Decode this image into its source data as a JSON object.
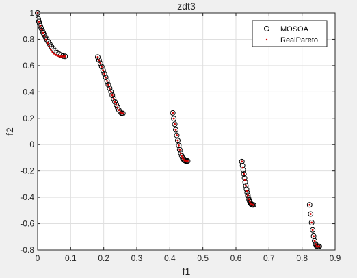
{
  "chart_data": {
    "type": "scatter",
    "title": "zdt3",
    "xlabel": "f1",
    "ylabel": "f2",
    "xlim": [
      0,
      0.9
    ],
    "ylim": [
      -0.8,
      1
    ],
    "xticks": [
      0,
      0.1,
      0.2,
      0.3,
      0.4,
      0.5,
      0.6,
      0.7,
      0.8,
      0.9
    ],
    "xtick_labels": [
      "0",
      "0.1",
      "0.2",
      "0.3",
      "0.4",
      "0.5",
      "0.6",
      "0.7",
      "0.8",
      "0.9"
    ],
    "yticks": [
      -0.8,
      -0.6,
      -0.4,
      -0.2,
      0,
      0.2,
      0.4,
      0.6,
      0.8,
      1
    ],
    "ytick_labels": [
      "-0.8",
      "-0.6",
      "-0.4",
      "-0.2",
      "0",
      "0.2",
      "0.4",
      "0.6",
      "0.8",
      "1"
    ],
    "grid": true,
    "legend_position": "top-right",
    "segments": [
      [
        0,
        0.083
      ],
      [
        0.182,
        0.258
      ],
      [
        0.409,
        0.454
      ],
      [
        0.618,
        0.653
      ],
      [
        0.823,
        0.852
      ]
    ],
    "series": [
      {
        "name": "MOSOA",
        "marker": "circle-open",
        "color": "#000000",
        "x": [
          0,
          0.002,
          0.004,
          0.006,
          0.008,
          0.011,
          0.014,
          0.017,
          0.02,
          0.024,
          0.028,
          0.032,
          0.037,
          0.042,
          0.047,
          0.053,
          0.059,
          0.065,
          0.071,
          0.077,
          0.083,
          0.182,
          0.186,
          0.19,
          0.194,
          0.198,
          0.202,
          0.206,
          0.21,
          0.214,
          0.218,
          0.222,
          0.226,
          0.23,
          0.234,
          0.238,
          0.242,
          0.246,
          0.25,
          0.254,
          0.258,
          0.409,
          0.412,
          0.415,
          0.418,
          0.421,
          0.424,
          0.427,
          0.43,
          0.433,
          0.436,
          0.439,
          0.442,
          0.445,
          0.448,
          0.451,
          0.454,
          0.618,
          0.62,
          0.622,
          0.624,
          0.626,
          0.628,
          0.63,
          0.632,
          0.634,
          0.636,
          0.638,
          0.64,
          0.642,
          0.644,
          0.646,
          0.648,
          0.65,
          0.653,
          0.823,
          0.826,
          0.829,
          0.832,
          0.835,
          0.838,
          0.841,
          0.844,
          0.847,
          0.85,
          0.852
        ],
        "y": [
          1,
          0.955,
          0.935,
          0.918,
          0.903,
          0.884,
          0.866,
          0.849,
          0.834,
          0.815,
          0.797,
          0.781,
          0.762,
          0.745,
          0.729,
          0.713,
          0.699,
          0.688,
          0.679,
          0.673,
          0.671,
          0.665,
          0.642,
          0.617,
          0.592,
          0.565,
          0.538,
          0.511,
          0.483,
          0.455,
          0.428,
          0.401,
          0.375,
          0.349,
          0.325,
          0.303,
          0.282,
          0.263,
          0.248,
          0.239,
          0.237,
          0.241,
          0.198,
          0.156,
          0.113,
          0.071,
          0.032,
          -0.006,
          -0.038,
          -0.065,
          -0.086,
          -0.102,
          -0.113,
          -0.12,
          -0.124,
          -0.125,
          -0.124,
          -0.128,
          -0.16,
          -0.192,
          -0.223,
          -0.254,
          -0.284,
          -0.312,
          -0.339,
          -0.364,
          -0.386,
          -0.405,
          -0.421,
          -0.434,
          -0.445,
          -0.452,
          -0.456,
          -0.458,
          -0.458,
          -0.458,
          -0.527,
          -0.592,
          -0.648,
          -0.695,
          -0.731,
          -0.756,
          -0.77,
          -0.774,
          -0.773,
          -0.773
        ]
      },
      {
        "name": "RealPareto",
        "marker": "dot",
        "color": "#d10000",
        "x": [
          0,
          0.004,
          0.008,
          0.012,
          0.016,
          0.02,
          0.025,
          0.03,
          0.035,
          0.04,
          0.045,
          0.05,
          0.055,
          0.06,
          0.065,
          0.07,
          0.075,
          0.08,
          0.083,
          0.182,
          0.186,
          0.19,
          0.194,
          0.198,
          0.202,
          0.206,
          0.21,
          0.214,
          0.218,
          0.222,
          0.226,
          0.23,
          0.234,
          0.238,
          0.242,
          0.246,
          0.25,
          0.254,
          0.258,
          0.409,
          0.412,
          0.415,
          0.418,
          0.421,
          0.424,
          0.427,
          0.43,
          0.433,
          0.436,
          0.439,
          0.442,
          0.445,
          0.448,
          0.451,
          0.454,
          0.618,
          0.621,
          0.624,
          0.627,
          0.63,
          0.633,
          0.636,
          0.639,
          0.642,
          0.645,
          0.648,
          0.651,
          0.653,
          0.823,
          0.826,
          0.829,
          0.832,
          0.835,
          0.838,
          0.841,
          0.844,
          0.847,
          0.85,
          0.852
        ],
        "y": [
          1,
          0.935,
          0.903,
          0.875,
          0.849,
          0.826,
          0.797,
          0.77,
          0.745,
          0.722,
          0.705,
          0.691,
          0.681,
          0.675,
          0.671,
          0.67,
          0.67,
          0.67,
          0.671,
          0.665,
          0.642,
          0.617,
          0.592,
          0.565,
          0.538,
          0.511,
          0.483,
          0.455,
          0.428,
          0.401,
          0.375,
          0.349,
          0.325,
          0.303,
          0.282,
          0.263,
          0.248,
          0.239,
          0.237,
          0.241,
          0.198,
          0.156,
          0.113,
          0.071,
          0.032,
          -0.006,
          -0.038,
          -0.065,
          -0.086,
          -0.102,
          -0.113,
          -0.12,
          -0.124,
          -0.125,
          -0.124,
          -0.128,
          -0.176,
          -0.223,
          -0.269,
          -0.312,
          -0.352,
          -0.386,
          -0.414,
          -0.434,
          -0.448,
          -0.456,
          -0.458,
          -0.458,
          -0.458,
          -0.527,
          -0.592,
          -0.648,
          -0.695,
          -0.731,
          -0.756,
          -0.77,
          -0.774,
          -0.773,
          -0.773
        ]
      }
    ]
  }
}
